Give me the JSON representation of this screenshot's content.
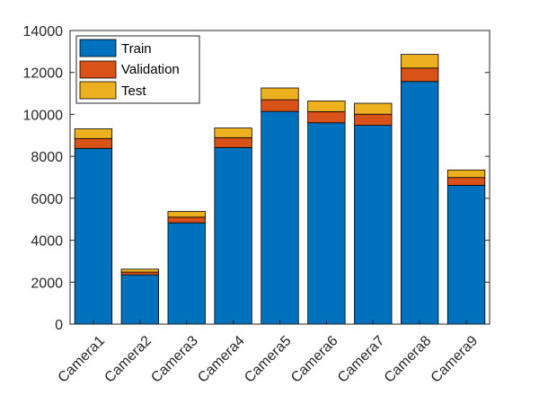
{
  "chart_data": {
    "type": "bar",
    "stacked": true,
    "categories": [
      "Camera1",
      "Camera2",
      "Camera3",
      "Camera4",
      "Camera5",
      "Camera6",
      "Camera7",
      "Camera8",
      "Camera9"
    ],
    "series": [
      {
        "name": "Train",
        "color": "#0072BD",
        "values": [
          8380,
          2350,
          4830,
          8420,
          10140,
          9600,
          9480,
          11570,
          6620
        ]
      },
      {
        "name": "Validation",
        "color": "#D95319",
        "values": [
          470,
          130,
          270,
          470,
          560,
          530,
          530,
          640,
          370
        ]
      },
      {
        "name": "Test",
        "color": "#EDB120",
        "values": [
          460,
          140,
          270,
          460,
          560,
          510,
          520,
          650,
          360
        ]
      }
    ],
    "ylim": [
      0,
      14000
    ],
    "yticks": [
      "0",
      "2000",
      "4000",
      "6000",
      "8000",
      "10000",
      "12000",
      "14000"
    ],
    "legend_position": "top-left",
    "grid": false
  }
}
